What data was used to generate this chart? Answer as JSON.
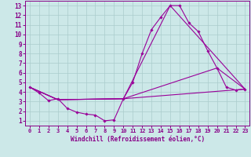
{
  "xlabel": "Windchill (Refroidissement éolien,°C)",
  "bg_color": "#cce8e8",
  "line_color": "#990099",
  "grid_color": "#aacccc",
  "xlim": [
    -0.5,
    23.5
  ],
  "ylim": [
    0.5,
    13.5
  ],
  "xticks": [
    0,
    1,
    2,
    3,
    4,
    5,
    6,
    7,
    8,
    9,
    10,
    11,
    12,
    13,
    14,
    15,
    16,
    17,
    18,
    19,
    20,
    21,
    22,
    23
  ],
  "yticks": [
    1,
    2,
    3,
    4,
    5,
    6,
    7,
    8,
    9,
    10,
    11,
    12,
    13
  ],
  "line1_x": [
    0,
    1,
    2,
    3,
    4,
    5,
    6,
    7,
    8,
    9,
    10,
    11,
    12,
    13,
    14,
    15,
    16,
    17,
    18,
    19,
    20,
    21,
    22,
    23
  ],
  "line1_y": [
    4.5,
    3.9,
    3.1,
    3.3,
    2.3,
    1.9,
    1.7,
    1.6,
    1.0,
    1.1,
    3.3,
    5.0,
    8.0,
    10.5,
    11.8,
    13.0,
    13.0,
    11.2,
    10.3,
    8.3,
    6.5,
    4.5,
    4.2,
    4.3
  ],
  "line2_x": [
    0,
    3,
    10,
    15,
    23
  ],
  "line2_y": [
    4.5,
    3.2,
    3.3,
    13.0,
    4.3
  ],
  "line3_x": [
    0,
    3,
    10,
    20,
    23
  ],
  "line3_y": [
    4.5,
    3.2,
    3.3,
    6.5,
    4.3
  ],
  "line4_x": [
    0,
    3,
    10,
    23
  ],
  "line4_y": [
    4.5,
    3.2,
    3.3,
    4.3
  ]
}
